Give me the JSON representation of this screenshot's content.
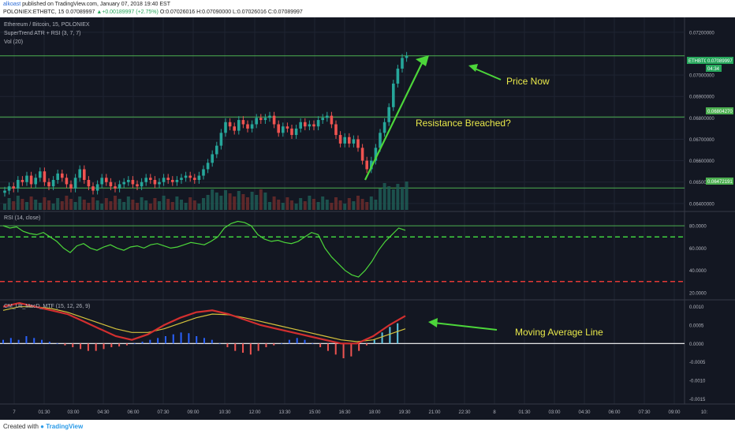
{
  "header": {
    "author": "alkoast",
    "published_text": "published on TradingView.com, January 07, 2018 19:40 EST",
    "symbol_line": "POLONIEX:ETHBTC, 15",
    "last_price": "0.07089997",
    "change": "▲+0.00189997 (+2.75%)",
    "ohlc": "O:0.07026016 H:0.07090000 L:0.07026016 C:0.07089997"
  },
  "legend": {
    "title": "Ethereum / Bitcoin, 15, POLONIEX",
    "indicator1": "SuperTrend ATR + RSI (3, 7, 7)",
    "indicator2": "Vol (20)",
    "rsi_label": "RSI (14, close)",
    "macd_label": "CM_Ult_MacD_MTF (15, 12, 26, 9)"
  },
  "annotations": {
    "price_now": "Price Now",
    "resistance": "Resistance Breached?",
    "ma_line": "Moving Average Line"
  },
  "price_tags": {
    "symbol": "ETHBTC",
    "price": "0.07089997",
    "countdown": "04:34",
    "resistance_level": "0.06804270",
    "support_level": "0.06472191"
  },
  "footer": {
    "created_with": "Created with",
    "brand": "TradingView"
  },
  "colors": {
    "background": "#131722",
    "up": "#26a69a",
    "down": "#ef5350",
    "annotation_text": "#e8e84a",
    "arrows": "#4cd63a",
    "hlines": "#4caf50"
  },
  "chart_data": [
    {
      "type": "candlestick",
      "y_ticks": [
        "0.07200000",
        "0.07000000",
        "0.06900000",
        "0.06800000",
        "0.06700000",
        "0.06600000",
        "0.06500000",
        "0.06400000"
      ],
      "ylim": [
        0.0637,
        0.0724
      ],
      "x_ticks": [
        "7",
        "01:30",
        "03:00",
        "04:30",
        "06:00",
        "07:30",
        "09:00",
        "10:30",
        "12:00",
        "13:30",
        "15:00",
        "16:30",
        "18:00",
        "19:30",
        "21:00",
        "22:30",
        "8",
        "01:30",
        "03:00",
        "04:30",
        "06:00",
        "07:30",
        "09:00",
        "10:"
      ],
      "horizontal_lines": [
        0.07089997,
        0.0680427,
        0.06472191
      ],
      "close": [
        0.0646,
        0.0648,
        0.0647,
        0.0651,
        0.065,
        0.0653,
        0.0649,
        0.0652,
        0.0655,
        0.065,
        0.0648,
        0.0651,
        0.0654,
        0.0652,
        0.0649,
        0.0647,
        0.0652,
        0.0656,
        0.0651,
        0.0648,
        0.0646,
        0.0649,
        0.0652,
        0.065,
        0.0648,
        0.0647,
        0.0649,
        0.065,
        0.0651,
        0.0649,
        0.0648,
        0.065,
        0.0652,
        0.0651,
        0.0649,
        0.065,
        0.0652,
        0.0651,
        0.065,
        0.0651,
        0.0652,
        0.0653,
        0.0652,
        0.0651,
        0.0653,
        0.0656,
        0.0659,
        0.0663,
        0.0667,
        0.0673,
        0.0678,
        0.0676,
        0.0674,
        0.0679,
        0.0677,
        0.0675,
        0.0677,
        0.068,
        0.0679,
        0.068,
        0.0681,
        0.0677,
        0.0673,
        0.0676,
        0.0675,
        0.0672,
        0.0675,
        0.0678,
        0.0676,
        0.0677,
        0.0676,
        0.0679,
        0.068,
        0.0681,
        0.0677,
        0.0672,
        0.0668,
        0.0671,
        0.0668,
        0.067,
        0.0666,
        0.066,
        0.0656,
        0.066,
        0.0666,
        0.0673,
        0.0678,
        0.0685,
        0.0696,
        0.0703,
        0.0708,
        0.0709
      ]
    },
    {
      "type": "line",
      "name": "RSI (14, close)",
      "y_ticks": [
        "80.0000",
        "60.0000",
        "40.0000",
        "20.0000"
      ],
      "ylim": [
        15,
        90
      ],
      "levels": [
        70,
        30
      ],
      "values": [
        80,
        78,
        79,
        75,
        73,
        72,
        74,
        70,
        66,
        60,
        56,
        62,
        64,
        60,
        58,
        61,
        63,
        60,
        58,
        61,
        62,
        60,
        63,
        64,
        62,
        60,
        61,
        63,
        65,
        64,
        63,
        66,
        70,
        78,
        82,
        84,
        83,
        80,
        72,
        68,
        66,
        67,
        65,
        64,
        66,
        70,
        74,
        72,
        60,
        52,
        46,
        40,
        36,
        34,
        40,
        48,
        58,
        66,
        72,
        78,
        76
      ]
    },
    {
      "type": "histogram",
      "name": "CM_Ult_MacD_MTF (15, 12, 26, 9)",
      "y_ticks": [
        "0.0010",
        "0.0005",
        "0.0000",
        "-0.0005",
        "-0.0010",
        "-0.0015"
      ],
      "ylim": [
        -0.0016,
        0.0011
      ],
      "histogram": [
        0.0001,
        0.00015,
        0.0001,
        0.0002,
        0.00015,
        0.0001,
        5e-05,
        0.0,
        -5e-05,
        -0.0001,
        -0.00015,
        -0.0002,
        -0.0002,
        -0.00015,
        -0.0001,
        -8e-05,
        -5e-05,
        0.0,
        5e-05,
        0.0001,
        0.00015,
        0.0002,
        0.00025,
        0.0003,
        0.00028,
        0.0002,
        0.00015,
        0.0001,
        0.0,
        -0.0001,
        -0.0002,
        -0.00025,
        -0.0003,
        -0.0002,
        -0.0001,
        -5e-05,
        0.0,
        0.0001,
        0.00015,
        0.0001,
        0.0,
        -0.0001,
        -0.0002,
        -0.0003,
        -0.0004,
        -0.00035,
        -0.0002,
        -5e-05,
        0.0001,
        0.0003,
        0.00045,
        0.00055
      ],
      "macd": [
        0.001,
        0.0011,
        0.001,
        0.0009,
        0.0008,
        0.0006,
        0.0004,
        0.0002,
        0.0001,
        0.00025,
        0.0005,
        0.0007,
        0.00085,
        0.0009,
        0.0008,
        0.00065,
        0.0005,
        0.0004,
        0.0003,
        0.0002,
        0.0001,
        0.0,
        0.0,
        0.0002,
        0.0005,
        0.00075
      ],
      "signal": [
        0.0009,
        0.001,
        0.001,
        0.00095,
        0.00085,
        0.0007,
        0.00055,
        0.0004,
        0.0003,
        0.0003,
        0.0004,
        0.00055,
        0.0007,
        0.0008,
        0.00078,
        0.0007,
        0.0006,
        0.0005,
        0.0004,
        0.0003,
        0.0002,
        0.0001,
        5e-05,
        0.0001,
        0.00025,
        0.0004
      ]
    }
  ]
}
